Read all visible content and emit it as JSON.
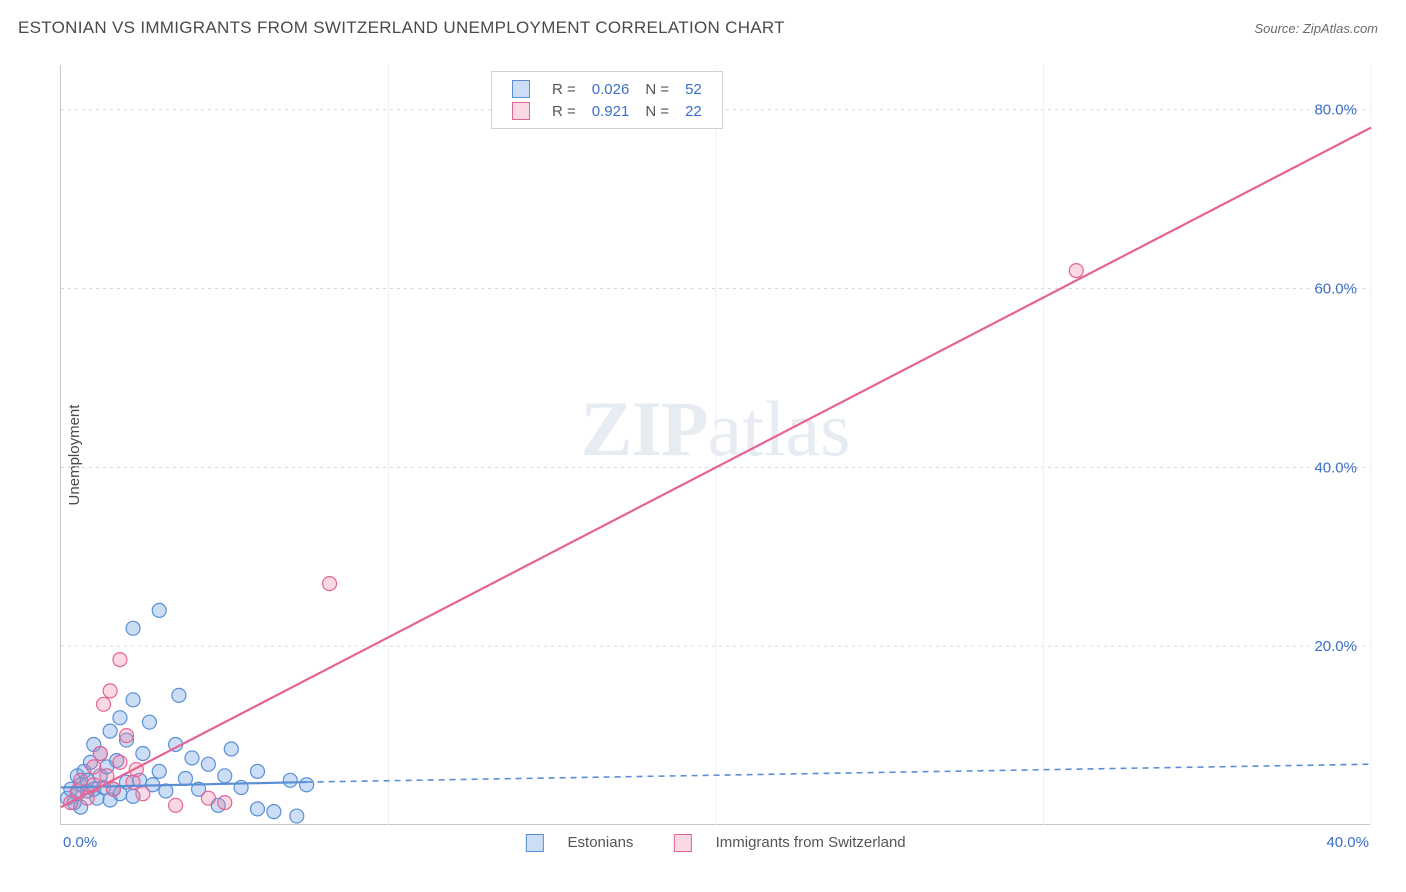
{
  "title": "ESTONIAN VS IMMIGRANTS FROM SWITZERLAND UNEMPLOYMENT CORRELATION CHART",
  "source": "Source: ZipAtlas.com",
  "y_axis_label": "Unemployment",
  "watermark": "ZIPatlas",
  "chart": {
    "type": "scatter",
    "xlim": [
      0,
      40
    ],
    "ylim": [
      0,
      85
    ],
    "xticks": [
      0,
      10,
      20,
      30,
      40
    ],
    "xtick_labels": [
      "0.0%",
      "",
      "",
      "",
      "40.0%"
    ],
    "yticks": [
      20,
      40,
      60,
      80
    ],
    "ytick_labels": [
      "20.0%",
      "40.0%",
      "60.0%",
      "80.0%"
    ],
    "background_color": "#ffffff",
    "grid_color": "#d8d8d8",
    "axis_color": "#c8c8c8",
    "tick_label_color": "#3b6fc9",
    "marker_radius": 7,
    "marker_stroke_width": 1.2,
    "series": [
      {
        "name": "Estonians",
        "color_fill": "rgba(110,160,225,0.35)",
        "color_stroke": "#5a8fd6",
        "R": "0.026",
        "N": "52",
        "trend": {
          "x1": 0,
          "y1": 4.2,
          "x2": 7.5,
          "y2": 4.8,
          "solid_until_x": 7.5,
          "dash_to_x": 40,
          "dash_to_y": 6.8,
          "width": 2.2,
          "dash": "6 5"
        },
        "points": [
          [
            0.2,
            3.0
          ],
          [
            0.3,
            4.0
          ],
          [
            0.4,
            2.5
          ],
          [
            0.5,
            3.5
          ],
          [
            0.5,
            5.5
          ],
          [
            0.6,
            2.0
          ],
          [
            0.6,
            4.5
          ],
          [
            0.7,
            6.0
          ],
          [
            0.8,
            3.8
          ],
          [
            0.8,
            5.0
          ],
          [
            0.9,
            7.0
          ],
          [
            1.0,
            4.0
          ],
          [
            1.0,
            9.0
          ],
          [
            1.1,
            3.0
          ],
          [
            1.2,
            5.5
          ],
          [
            1.2,
            8.0
          ],
          [
            1.3,
            4.2
          ],
          [
            1.4,
            6.5
          ],
          [
            1.5,
            2.8
          ],
          [
            1.5,
            10.5
          ],
          [
            1.6,
            4.0
          ],
          [
            1.7,
            7.2
          ],
          [
            1.8,
            3.5
          ],
          [
            1.8,
            12.0
          ],
          [
            2.0,
            4.8
          ],
          [
            2.0,
            9.5
          ],
          [
            2.2,
            3.2
          ],
          [
            2.2,
            14.0
          ],
          [
            2.4,
            5.0
          ],
          [
            2.5,
            8.0
          ],
          [
            2.7,
            11.5
          ],
          [
            2.8,
            4.5
          ],
          [
            3.0,
            6.0
          ],
          [
            3.0,
            24.0
          ],
          [
            2.2,
            22.0
          ],
          [
            3.2,
            3.8
          ],
          [
            3.5,
            9.0
          ],
          [
            3.6,
            14.5
          ],
          [
            3.8,
            5.2
          ],
          [
            4.0,
            7.5
          ],
          [
            4.2,
            4.0
          ],
          [
            4.5,
            6.8
          ],
          [
            5.0,
            5.5
          ],
          [
            5.2,
            8.5
          ],
          [
            5.5,
            4.2
          ],
          [
            6.0,
            6.0
          ],
          [
            6.5,
            1.5
          ],
          [
            7.0,
            5.0
          ],
          [
            7.2,
            1.0
          ],
          [
            7.5,
            4.5
          ],
          [
            6.0,
            1.8
          ],
          [
            4.8,
            2.2
          ]
        ]
      },
      {
        "name": "Immigrants from Switzerland",
        "color_fill": "rgba(240,130,165,0.30)",
        "color_stroke": "#e66395",
        "R": "0.921",
        "N": "22",
        "trend": {
          "x1": 0,
          "y1": 2.0,
          "x2": 40,
          "y2": 78,
          "solid_until_x": 40,
          "width": 2.2
        },
        "points": [
          [
            0.3,
            2.5
          ],
          [
            0.5,
            3.8
          ],
          [
            0.6,
            5.0
          ],
          [
            0.8,
            3.0
          ],
          [
            1.0,
            4.5
          ],
          [
            1.0,
            6.5
          ],
          [
            1.2,
            8.0
          ],
          [
            1.3,
            13.5
          ],
          [
            1.4,
            5.5
          ],
          [
            1.5,
            15.0
          ],
          [
            1.6,
            4.0
          ],
          [
            1.8,
            7.0
          ],
          [
            1.8,
            18.5
          ],
          [
            2.0,
            10.0
          ],
          [
            2.2,
            4.8
          ],
          [
            2.3,
            6.2
          ],
          [
            2.5,
            3.5
          ],
          [
            3.5,
            2.2
          ],
          [
            4.5,
            3.0
          ],
          [
            5.0,
            2.5
          ],
          [
            8.2,
            27.0
          ],
          [
            31.0,
            62.0
          ]
        ]
      }
    ]
  },
  "legend_top": {
    "rows": [
      {
        "swatch_fill": "rgba(110,160,225,0.35)",
        "swatch_stroke": "#5a8fd6",
        "r_label": "R =",
        "r_val": "0.026",
        "n_label": "N =",
        "n_val": "52"
      },
      {
        "swatch_fill": "rgba(240,130,165,0.30)",
        "swatch_stroke": "#e66395",
        "r_label": "R =",
        "r_val": "0.921",
        "n_label": "N =",
        "n_val": "22"
      }
    ]
  },
  "legend_bottom": {
    "items": [
      {
        "swatch_fill": "rgba(110,160,225,0.35)",
        "swatch_stroke": "#5a8fd6",
        "label": "Estonians"
      },
      {
        "swatch_fill": "rgba(240,130,165,0.30)",
        "swatch_stroke": "#e66395",
        "label": "Immigrants from Switzerland"
      }
    ]
  }
}
